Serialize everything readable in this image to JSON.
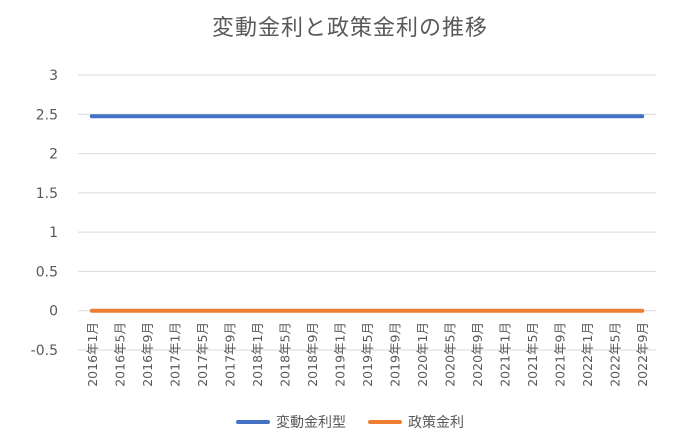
{
  "chart_data": {
    "type": "line",
    "title": "変動金利と政策金利の推移",
    "xlabel": "",
    "ylabel": "",
    "ylim": [
      -0.5,
      3
    ],
    "yticks": [
      "-0.5",
      "0",
      "0.5",
      "1",
      "1.5",
      "2",
      "2.5",
      "3"
    ],
    "grid": true,
    "legend_position": "bottom",
    "categories": [
      "2016年1月",
      "2016年5月",
      "2016年9月",
      "2017年1月",
      "2017年5月",
      "2017年9月",
      "2018年1月",
      "2018年5月",
      "2018年9月",
      "2019年1月",
      "2019年5月",
      "2019年9月",
      "2020年1月",
      "2020年5月",
      "2020年9月",
      "2021年1月",
      "2021年5月",
      "2021年9月",
      "2022年1月",
      "2022年5月",
      "2022年9月"
    ],
    "series": [
      {
        "name": "変動金利型",
        "color": "#4472C4",
        "values": [
          2.475,
          2.475,
          2.475,
          2.475,
          2.475,
          2.475,
          2.475,
          2.475,
          2.475,
          2.475,
          2.475,
          2.475,
          2.475,
          2.475,
          2.475,
          2.475,
          2.475,
          2.475,
          2.475,
          2.475,
          2.475
        ]
      },
      {
        "name": "政策金利",
        "color": "#ED7D31",
        "values": [
          0,
          0,
          0,
          0,
          0,
          0,
          0,
          0,
          0,
          0,
          0,
          0,
          0,
          0,
          0,
          0,
          0,
          0,
          0,
          0,
          0
        ]
      }
    ]
  }
}
